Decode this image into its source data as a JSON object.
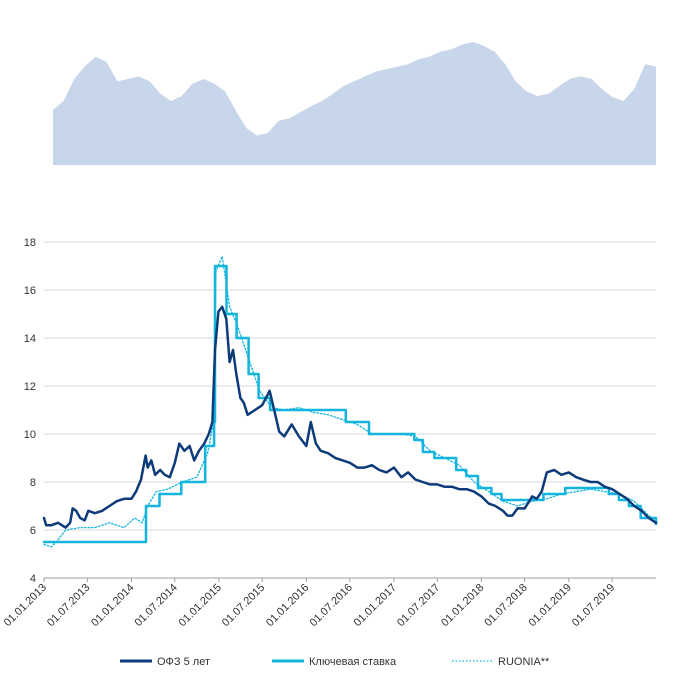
{
  "chart_data": [
    {
      "type": "area",
      "title": "",
      "xlabel": "",
      "ylabel": "",
      "x_range": [
        "2013-01-01",
        "2019-12-31"
      ],
      "x": [
        "2013-01-01",
        "2013-02-15",
        "2013-04-01",
        "2013-05-15",
        "2013-06-30",
        "2013-08-15",
        "2013-10-01",
        "2013-11-15",
        "2013-12-31",
        "2014-02-15",
        "2014-04-01",
        "2014-05-15",
        "2014-06-30",
        "2014-08-15",
        "2014-10-01",
        "2014-11-15",
        "2014-12-31",
        "2015-02-15",
        "2015-04-01",
        "2015-05-15",
        "2015-06-30",
        "2015-08-15",
        "2015-10-01",
        "2015-11-15",
        "2015-12-31",
        "2016-02-15",
        "2016-04-01",
        "2016-05-15",
        "2016-06-30",
        "2016-08-15",
        "2016-10-01",
        "2016-11-15",
        "2016-12-31",
        "2017-02-15",
        "2017-04-01",
        "2017-05-15",
        "2017-06-30",
        "2017-08-15",
        "2017-10-01",
        "2017-11-15",
        "2017-12-31",
        "2018-02-15",
        "2018-04-01",
        "2018-05-15",
        "2018-06-30",
        "2018-08-15",
        "2018-10-01",
        "2018-11-15",
        "2018-12-31",
        "2019-02-15",
        "2019-04-01",
        "2019-05-15",
        "2019-06-30",
        "2019-08-15",
        "2019-10-01",
        "2019-11-15",
        "2019-12-31"
      ],
      "values": [
        0.45,
        0.52,
        0.7,
        0.8,
        0.88,
        0.84,
        0.68,
        0.7,
        0.72,
        0.68,
        0.58,
        0.52,
        0.56,
        0.66,
        0.7,
        0.66,
        0.6,
        0.44,
        0.3,
        0.24,
        0.26,
        0.36,
        0.38,
        0.43,
        0.48,
        0.52,
        0.58,
        0.64,
        0.68,
        0.72,
        0.76,
        0.78,
        0.8,
        0.82,
        0.86,
        0.88,
        0.92,
        0.94,
        0.98,
        1.0,
        0.97,
        0.92,
        0.82,
        0.68,
        0.6,
        0.56,
        0.58,
        0.64,
        0.7,
        0.72,
        0.7,
        0.62,
        0.55,
        0.52,
        0.62,
        0.82,
        0.8
      ],
      "color": "#c7d6ea"
    },
    {
      "type": "line",
      "title": "",
      "xlabel": "",
      "ylabel": "",
      "ylim": [
        4,
        18
      ],
      "yticks": [
        4,
        6,
        8,
        10,
        12,
        14,
        16,
        18
      ],
      "x_range": [
        "2013-01-01",
        "2019-12-31"
      ],
      "xtick_labels": [
        "01.01.2013",
        "01.07.2013",
        "01.01.2014",
        "01.07.2014",
        "01.01.2015",
        "01.07.2015",
        "01.01.2016",
        "01.07.2016",
        "01.01.2017",
        "01.07.2017",
        "01.01.2018",
        "01.07.2018",
        "01.01.2019",
        "01.07.2019"
      ],
      "xtick_dates": [
        "2013-01-01",
        "2013-07-01",
        "2014-01-01",
        "2014-07-01",
        "2015-01-01",
        "2015-07-01",
        "2016-01-01",
        "2016-07-01",
        "2017-01-01",
        "2017-07-01",
        "2018-01-01",
        "2018-07-01",
        "2019-01-01",
        "2019-07-01"
      ],
      "grid": true,
      "legend_position": "bottom",
      "series": [
        {
          "name": "ОФЗ 5 лет",
          "color": "#0d3b7a",
          "style": "solid",
          "width": 2.5,
          "x": [
            "2013-01-01",
            "2013-01-10",
            "2013-02-01",
            "2013-03-01",
            "2013-04-01",
            "2013-04-20",
            "2013-05-01",
            "2013-05-15",
            "2013-06-01",
            "2013-06-20",
            "2013-07-05",
            "2013-08-01",
            "2013-09-01",
            "2013-10-01",
            "2013-11-01",
            "2013-12-01",
            "2014-01-01",
            "2014-01-20",
            "2014-02-10",
            "2014-03-01",
            "2014-03-10",
            "2014-03-25",
            "2014-04-10",
            "2014-05-01",
            "2014-05-20",
            "2014-06-10",
            "2014-07-01",
            "2014-07-20",
            "2014-08-10",
            "2014-09-01",
            "2014-09-20",
            "2014-10-10",
            "2014-11-01",
            "2014-11-20",
            "2014-12-05",
            "2014-12-16",
            "2014-12-30",
            "2015-01-15",
            "2015-02-01",
            "2015-02-15",
            "2015-03-01",
            "2015-03-15",
            "2015-04-01",
            "2015-04-15",
            "2015-05-01",
            "2015-06-01",
            "2015-07-01",
            "2015-08-01",
            "2015-08-20",
            "2015-09-10",
            "2015-10-01",
            "2015-11-01",
            "2015-12-01",
            "2016-01-01",
            "2016-01-20",
            "2016-02-10",
            "2016-03-01",
            "2016-04-01",
            "2016-05-01",
            "2016-06-01",
            "2016-07-01",
            "2016-08-01",
            "2016-09-01",
            "2016-10-01",
            "2016-11-01",
            "2016-12-01",
            "2017-01-01",
            "2017-02-01",
            "2017-03-01",
            "2017-04-01",
            "2017-05-01",
            "2017-06-01",
            "2017-07-01",
            "2017-08-01",
            "2017-09-01",
            "2017-10-01",
            "2017-11-01",
            "2017-12-01",
            "2018-01-01",
            "2018-02-01",
            "2018-03-01",
            "2018-04-01",
            "2018-04-20",
            "2018-05-10",
            "2018-06-01",
            "2018-07-01",
            "2018-08-01",
            "2018-08-20",
            "2018-09-10",
            "2018-10-01",
            "2018-11-01",
            "2018-12-01",
            "2019-01-01",
            "2019-02-01",
            "2019-03-01",
            "2019-04-01",
            "2019-05-01",
            "2019-06-01",
            "2019-07-01",
            "2019-08-01",
            "2019-09-01",
            "2019-10-01",
            "2019-11-01",
            "2019-12-01",
            "2019-12-31"
          ],
          "values": [
            6.5,
            6.2,
            6.2,
            6.3,
            6.1,
            6.3,
            6.9,
            6.8,
            6.5,
            6.4,
            6.8,
            6.7,
            6.8,
            7.0,
            7.2,
            7.3,
            7.3,
            7.6,
            8.1,
            9.1,
            8.6,
            8.9,
            8.3,
            8.5,
            8.3,
            8.2,
            8.8,
            9.6,
            9.3,
            9.5,
            8.9,
            9.3,
            9.6,
            10.0,
            10.5,
            13.5,
            15.1,
            15.3,
            14.8,
            13.0,
            13.5,
            12.5,
            11.5,
            11.3,
            10.8,
            11.0,
            11.2,
            11.8,
            11.0,
            10.1,
            9.9,
            10.4,
            9.9,
            9.5,
            10.5,
            9.6,
            9.3,
            9.2,
            9.0,
            8.9,
            8.8,
            8.6,
            8.6,
            8.7,
            8.5,
            8.4,
            8.6,
            8.2,
            8.4,
            8.1,
            8.0,
            7.9,
            7.9,
            7.8,
            7.8,
            7.7,
            7.7,
            7.6,
            7.4,
            7.1,
            7.0,
            6.8,
            6.6,
            6.6,
            6.9,
            6.9,
            7.4,
            7.3,
            7.6,
            8.4,
            8.5,
            8.3,
            8.4,
            8.2,
            8.1,
            8.0,
            8.0,
            7.8,
            7.7,
            7.5,
            7.3,
            7.0,
            6.8,
            6.5,
            6.3
          ]
        },
        {
          "name": "Ключевая ставка",
          "color": "#13b4de",
          "style": "step",
          "width": 2.5,
          "x": [
            "2013-01-01",
            "2014-03-03",
            "2014-04-28",
            "2014-07-28",
            "2014-11-05",
            "2014-12-12",
            "2014-12-16",
            "2015-02-02",
            "2015-03-16",
            "2015-05-05",
            "2015-06-16",
            "2015-08-03",
            "2016-06-14",
            "2016-09-19",
            "2017-03-27",
            "2017-05-02",
            "2017-06-19",
            "2017-09-18",
            "2017-10-30",
            "2017-12-18",
            "2018-02-12",
            "2018-03-26",
            "2018-09-17",
            "2018-12-17",
            "2019-06-17",
            "2019-07-29",
            "2019-09-09",
            "2019-10-28",
            "2019-12-31"
          ],
          "values": [
            5.5,
            7.0,
            7.5,
            8.0,
            9.5,
            10.5,
            17.0,
            15.0,
            14.0,
            12.5,
            11.5,
            11.0,
            10.5,
            10.0,
            9.75,
            9.25,
            9.0,
            8.5,
            8.25,
            7.75,
            7.5,
            7.25,
            7.5,
            7.75,
            7.5,
            7.25,
            7.0,
            6.5,
            6.25
          ]
        },
        {
          "name": "RUONIA**",
          "color": "#13b4de",
          "style": "dotted",
          "width": 1.3,
          "x": [
            "2013-01-01",
            "2013-02-01",
            "2013-03-01",
            "2013-04-01",
            "2013-06-01",
            "2013-08-01",
            "2013-10-01",
            "2013-12-01",
            "2014-01-15",
            "2014-02-15",
            "2014-03-10",
            "2014-04-15",
            "2014-06-01",
            "2014-08-01",
            "2014-10-01",
            "2014-11-15",
            "2014-12-10",
            "2014-12-20",
            "2015-01-15",
            "2015-02-15",
            "2015-03-20",
            "2015-05-10",
            "2015-06-20",
            "2015-08-10",
            "2015-10-01",
            "2015-12-01",
            "2016-02-01",
            "2016-04-01",
            "2016-06-01",
            "2016-08-01",
            "2016-10-01",
            "2016-12-01",
            "2017-02-01",
            "2017-04-01",
            "2017-06-01",
            "2017-08-01",
            "2017-10-01",
            "2017-12-01",
            "2018-02-01",
            "2018-04-01",
            "2018-06-01",
            "2018-08-01",
            "2018-10-01",
            "2018-12-01",
            "2019-02-01",
            "2019-04-01",
            "2019-06-01",
            "2019-08-01",
            "2019-10-01",
            "2019-12-01",
            "2019-12-31"
          ],
          "values": [
            5.4,
            5.3,
            5.6,
            6.0,
            6.1,
            6.1,
            6.3,
            6.1,
            6.5,
            6.3,
            7.0,
            7.6,
            7.7,
            8.0,
            8.2,
            9.2,
            10.5,
            16.8,
            17.4,
            15.3,
            14.5,
            13.0,
            11.8,
            11.1,
            11.0,
            11.1,
            10.9,
            10.8,
            10.6,
            10.4,
            10.0,
            10.0,
            10.0,
            9.9,
            9.3,
            9.0,
            8.7,
            8.0,
            7.6,
            7.2,
            7.0,
            7.2,
            7.3,
            7.5,
            7.6,
            7.7,
            7.6,
            7.5,
            7.2,
            6.6,
            6.4
          ]
        }
      ]
    }
  ],
  "legend": {
    "items": [
      {
        "label": "ОФЗ 5 лет",
        "color": "#0d3b7a",
        "style": "solid"
      },
      {
        "label": "Ключевая ставка",
        "color": "#13b4de",
        "style": "solid"
      },
      {
        "label": "RUONIA**",
        "color": "#13b4de",
        "style": "dotted"
      }
    ]
  }
}
